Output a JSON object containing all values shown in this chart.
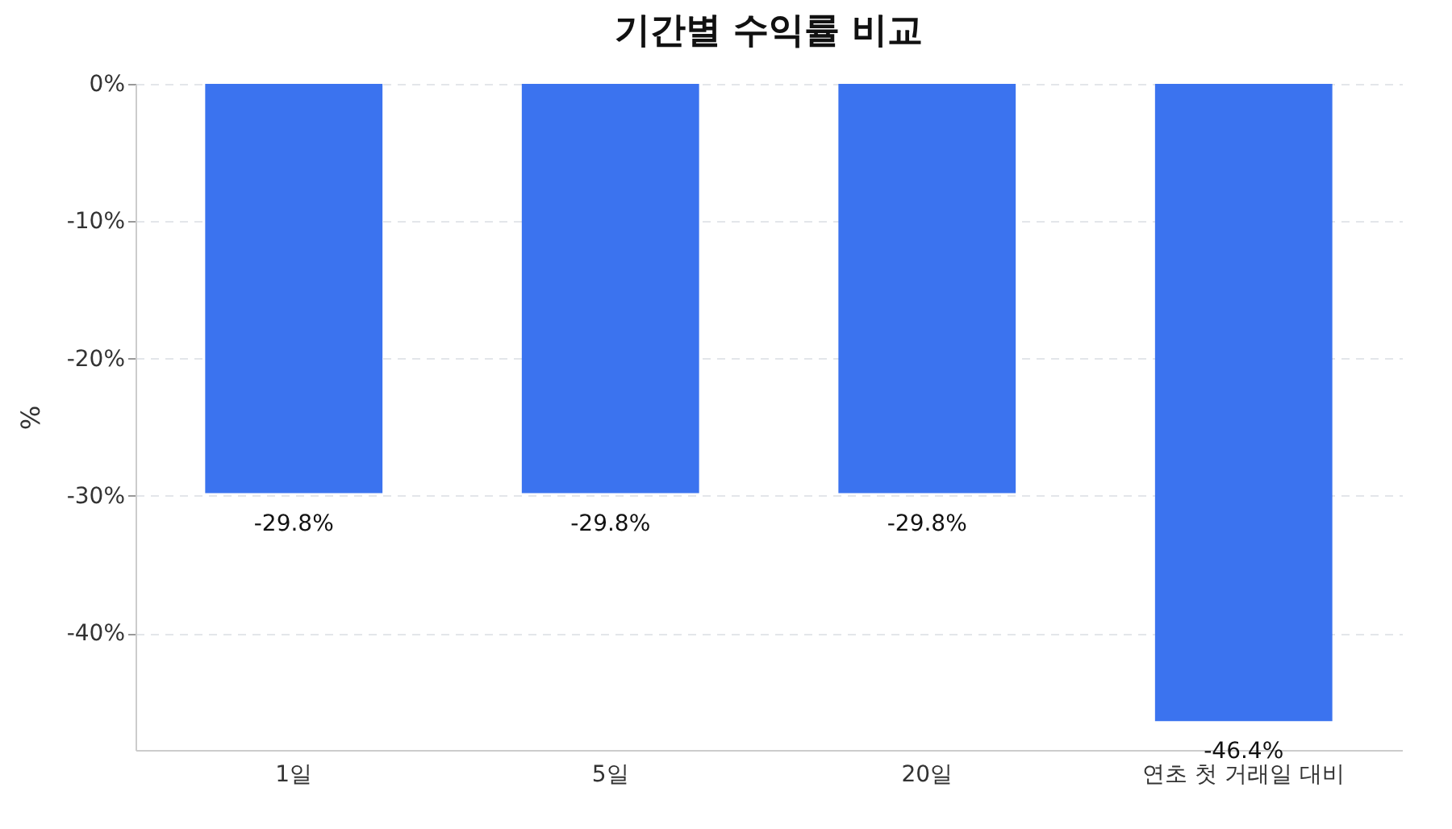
{
  "chart_data": {
    "type": "bar",
    "title": "기간별 수익률 비교",
    "ylabel": "%",
    "categories": [
      "1일",
      "5일",
      "20일",
      "연초 첫 거래일 대비"
    ],
    "values": [
      -29.8,
      -29.8,
      -29.8,
      -46.4
    ],
    "value_labels": [
      "-29.8%",
      "-29.8%",
      "-29.8%",
      "-46.4%"
    ],
    "color": "#3b73ef",
    "ylim": [
      -48.5,
      0
    ],
    "yticks": [
      {
        "value": 0,
        "label": "0%"
      },
      {
        "value": -10,
        "label": "-10%"
      },
      {
        "value": -20,
        "label": "-20%"
      },
      {
        "value": -30,
        "label": "-30%"
      },
      {
        "value": -40,
        "label": "-40%"
      }
    ],
    "grid": "y"
  }
}
